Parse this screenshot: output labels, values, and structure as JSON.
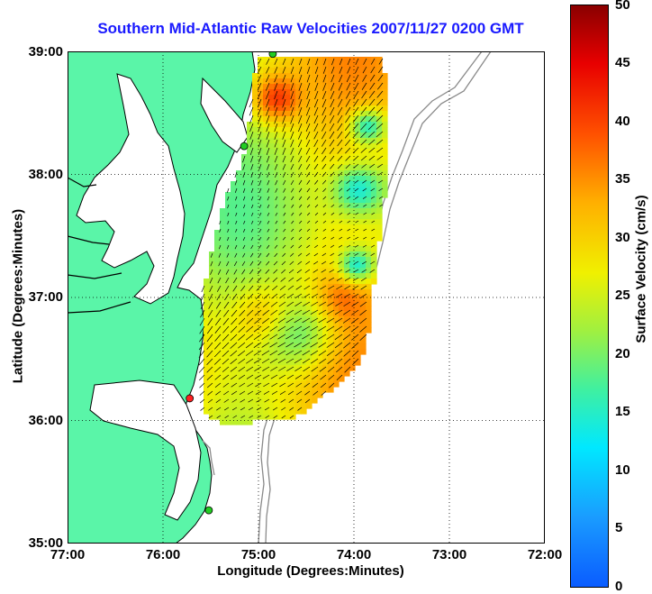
{
  "title": "Southern Mid-Atlantic Raw Velocities 2007/11/27 0200 GMT",
  "axes": {
    "xlabel": "Longitude (Degrees:Minutes)",
    "ylabel": "Latitude (Degrees:Minutes)",
    "xticks": [
      "77:00",
      "76:00",
      "75:00",
      "74:00",
      "73:00",
      "72:00"
    ],
    "yticks": [
      "39:00",
      "38:00",
      "37:00",
      "36:00",
      "35:00"
    ],
    "xlim": [
      -77,
      -72
    ],
    "ylim": [
      35,
      39
    ],
    "grid": true
  },
  "colorbar": {
    "label": "Surface Velocity (cm/s)",
    "ticks": [
      "50",
      "45",
      "40",
      "35",
      "30",
      "25",
      "20",
      "15",
      "10",
      "5",
      "0"
    ],
    "range": [
      0,
      50
    ]
  },
  "colors": {
    "land": "#5af5a8",
    "water": "#ffffff",
    "coast": "#000000",
    "bathymetry": "#8a8a8a",
    "title": "#1a1aff",
    "vectors": "#000000"
  },
  "sites": [
    {
      "lon": -74.85,
      "lat": 38.98,
      "color": "#22cc22"
    },
    {
      "lon": -75.15,
      "lat": 38.23,
      "color": "#22cc22"
    },
    {
      "lon": -75.72,
      "lat": 36.18,
      "color": "#ff2020"
    },
    {
      "lon": -75.52,
      "lat": 35.27,
      "color": "#22cc22"
    }
  ]
}
